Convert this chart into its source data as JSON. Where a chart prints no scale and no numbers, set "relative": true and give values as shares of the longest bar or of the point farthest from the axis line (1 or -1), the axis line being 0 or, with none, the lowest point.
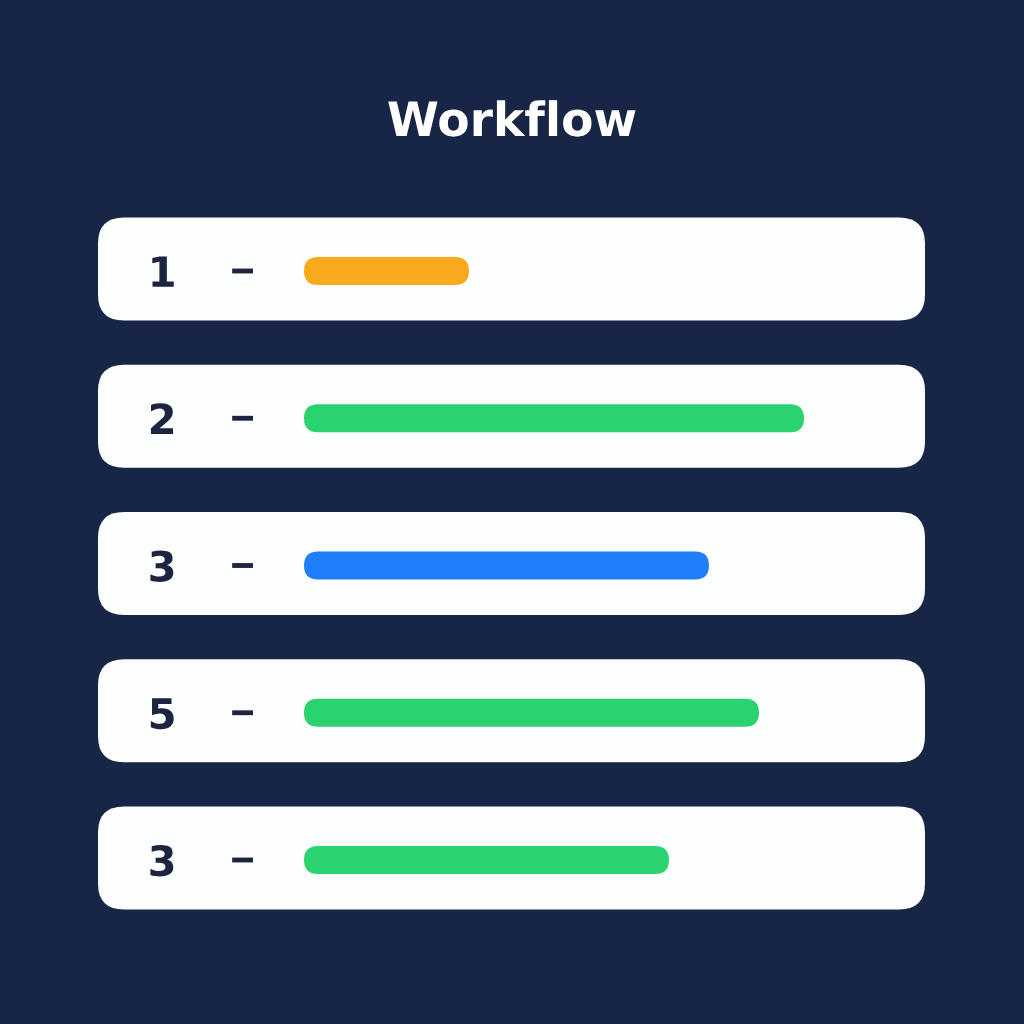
{
  "chart_data": {
    "type": "bar",
    "orientation": "horizontal",
    "relative": true,
    "title": "Workflow",
    "categories": [
      "1",
      "2",
      "3",
      "5",
      "3"
    ],
    "values": [
      0.33,
      1.0,
      0.81,
      0.91,
      0.73
    ],
    "colors": [
      "#f9a91e",
      "#2ad36f",
      "#1f7ef9",
      "#2ad36f",
      "#2ad36f"
    ]
  }
}
